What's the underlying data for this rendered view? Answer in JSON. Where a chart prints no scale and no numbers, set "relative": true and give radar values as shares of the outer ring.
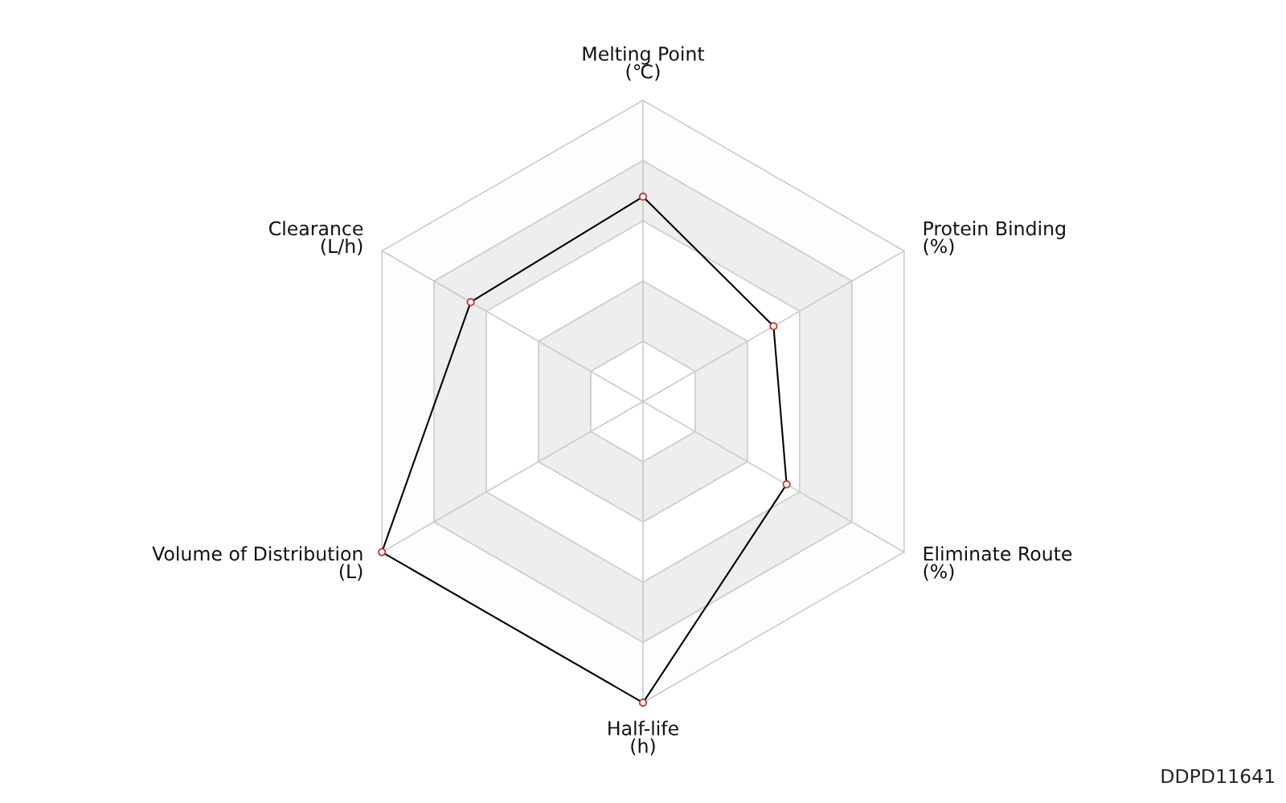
{
  "chart_data": {
    "type": "radar",
    "relative": true,
    "categories": [
      "Melting Point\n(℃)",
      "Protein Binding\n(%)",
      "Eliminate Route\n(%)",
      "Half-life\n(h)",
      "Volume of Distribution\n(L)",
      "Clearance\n(L/h)"
    ],
    "series": [
      {
        "color": "#000000",
        "values": [
          0.68,
          0.5,
          0.55,
          1.0,
          1.0,
          0.66
        ]
      }
    ],
    "marker": "circle",
    "annotations": [
      "DDPD11641"
    ]
  }
}
